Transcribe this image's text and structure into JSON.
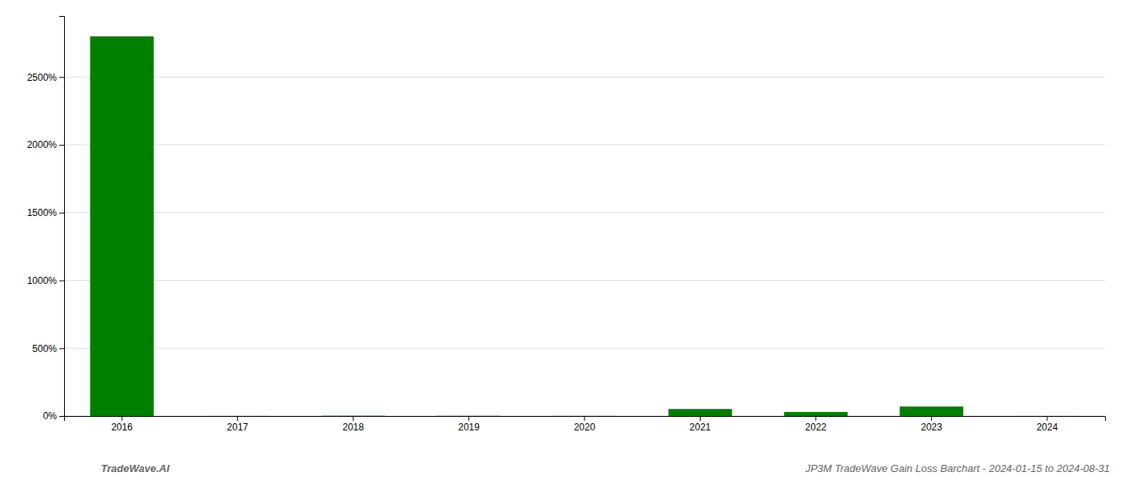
{
  "chart_data": {
    "type": "bar",
    "categories": [
      "2016",
      "2017",
      "2018",
      "2019",
      "2020",
      "2021",
      "2022",
      "2023",
      "2024"
    ],
    "values": [
      2800,
      0.5,
      2.0,
      1.5,
      1.0,
      52,
      30,
      70,
      0.3
    ],
    "color": "#008000",
    "ylim": [
      0,
      2950
    ],
    "yticks": [
      {
        "value": 0,
        "label": "0%"
      },
      {
        "value": 500,
        "label": "500%"
      },
      {
        "value": 1000,
        "label": "1000%"
      },
      {
        "value": 1500,
        "label": "1500%"
      },
      {
        "value": 2000,
        "label": "2000%"
      },
      {
        "value": 2500,
        "label": "2500%"
      }
    ],
    "grid": true,
    "annotations": [
      "TradeWave.AI",
      "JP3M TradeWave Gain Loss Barchart - 2024-01-15 to 2024-08-31"
    ]
  }
}
